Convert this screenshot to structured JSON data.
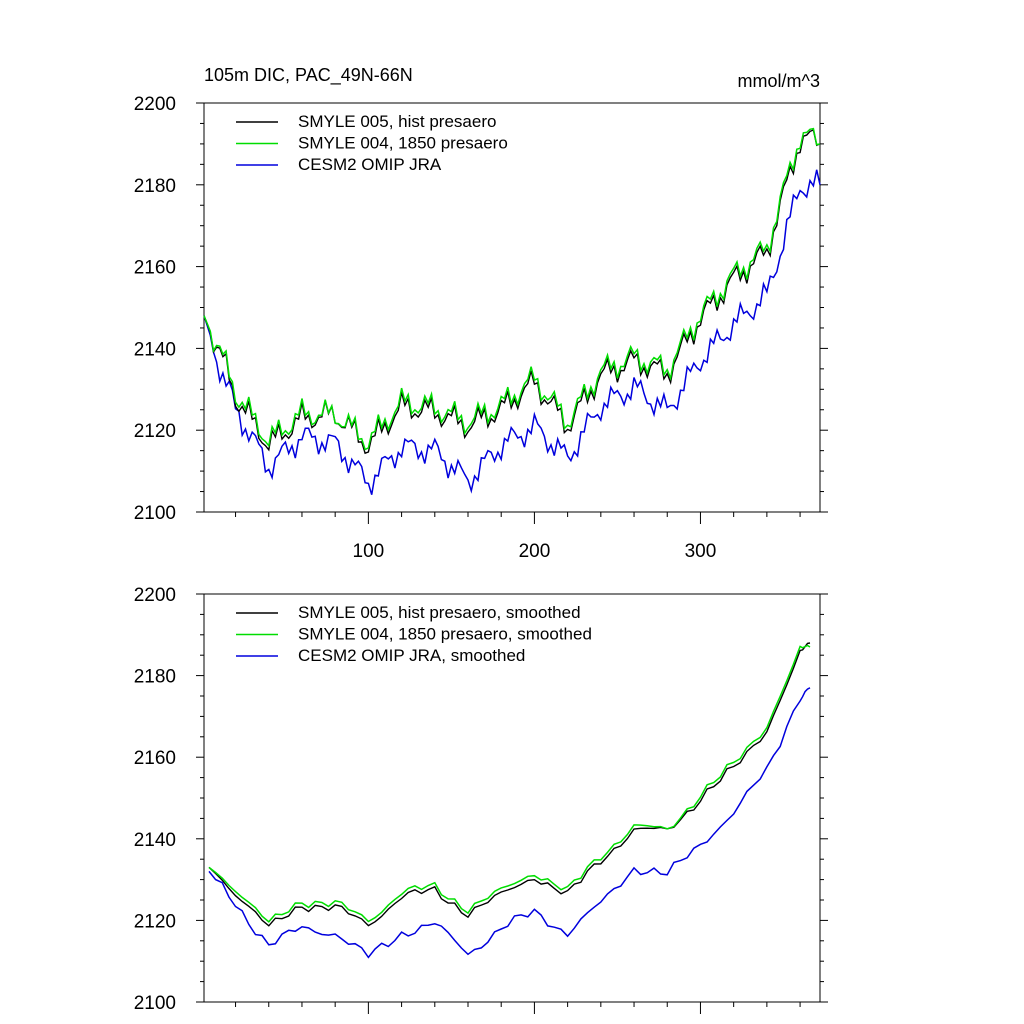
{
  "header": {
    "title": "105m DIC, PAC_49N-66N",
    "units": "mmol/m^3"
  },
  "colors": {
    "smyle005": "#000000",
    "smyle004": "#00dd00",
    "omip": "#0000dd"
  },
  "chart_data": [
    {
      "type": "line",
      "name": "raw",
      "xlim": [
        1,
        372
      ],
      "ylim": [
        2100,
        2200
      ],
      "xticks": [
        100,
        200,
        300
      ],
      "yticks": [
        2100,
        2120,
        2140,
        2160,
        2180,
        2200
      ],
      "xtick_labels": [
        "100",
        "200",
        "300"
      ],
      "ytick_labels": [
        "2100",
        "2120",
        "2140",
        "2160",
        "2180",
        "2200"
      ],
      "x": [
        1,
        20,
        40,
        60,
        80,
        100,
        120,
        140,
        160,
        180,
        200,
        220,
        240,
        260,
        280,
        300,
        320,
        340,
        360,
        372
      ],
      "series": [
        {
          "name": "SMYLE 005, hist presaero",
          "color_key": "smyle005",
          "values": [
            2148,
            2128,
            2117,
            2124,
            2125,
            2117,
            2126,
            2124,
            2120,
            2124,
            2131,
            2121,
            2134,
            2138,
            2135,
            2148,
            2157,
            2163,
            2190,
            2190
          ]
        },
        {
          "name": "SMYLE 004, 1850 presaero",
          "color_key": "smyle004",
          "values": [
            2148,
            2129,
            2118,
            2125,
            2125,
            2118,
            2127,
            2125,
            2121,
            2125,
            2132,
            2122,
            2135,
            2139,
            2136,
            2149,
            2158,
            2164,
            2191,
            2190
          ]
        },
        {
          "name": "CESM2 OMIP JRA",
          "color_key": "omip",
          "values": [
            2148,
            2124,
            2110,
            2118,
            2117,
            2108,
            2117,
            2116,
            2108,
            2116,
            2120,
            2112,
            2125,
            2130,
            2125,
            2138,
            2147,
            2154,
            2180,
            2180
          ]
        }
      ]
    },
    {
      "type": "line",
      "name": "smoothed",
      "xlim": [
        1,
        372
      ],
      "ylim": [
        2100,
        2200
      ],
      "xticks": [
        100,
        200,
        300
      ],
      "yticks": [
        2100,
        2120,
        2140,
        2160,
        2180,
        2200
      ],
      "xtick_labels": [],
      "ytick_labels": [
        "2100",
        "2120",
        "2140",
        "2160",
        "2180",
        "2200"
      ],
      "x": [
        4,
        20,
        40,
        60,
        80,
        100,
        120,
        140,
        160,
        180,
        200,
        220,
        240,
        260,
        280,
        300,
        320,
        340,
        360,
        366
      ],
      "series": [
        {
          "name": "SMYLE 005, hist presaero, smoothed",
          "color_key": "smyle005",
          "values": [
            2133,
            2127,
            2118,
            2124,
            2123,
            2119,
            2126,
            2127,
            2122,
            2126,
            2131,
            2126,
            2135,
            2142,
            2142,
            2150,
            2157,
            2167,
            2185,
            2188
          ]
        },
        {
          "name": "SMYLE 004, 1850 presaero, smoothed",
          "color_key": "smyle004",
          "values": [
            2133,
            2128,
            2119,
            2125,
            2124,
            2120,
            2127,
            2128,
            2123,
            2127,
            2132,
            2127,
            2136,
            2143,
            2142,
            2151,
            2158,
            2168,
            2186,
            2187
          ]
        },
        {
          "name": "CESM2 OMIP JRA, smoothed",
          "color_key": "omip",
          "values": [
            2132,
            2124,
            2114,
            2118,
            2117,
            2111,
            2117,
            2119,
            2112,
            2118,
            2122,
            2117,
            2124,
            2133,
            2131,
            2139,
            2146,
            2157,
            2175,
            2177
          ]
        }
      ]
    }
  ]
}
